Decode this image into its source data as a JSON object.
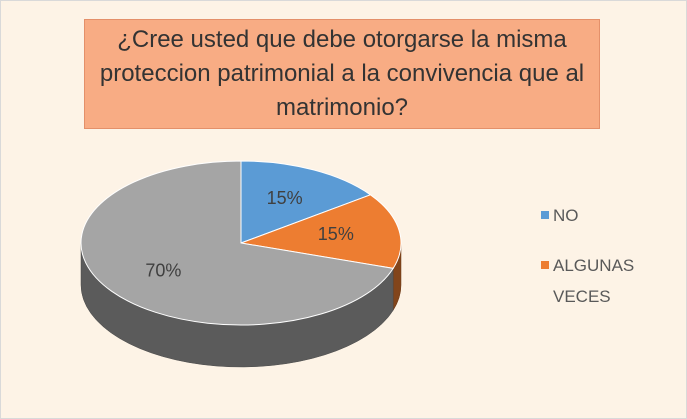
{
  "chart_data": {
    "type": "pie",
    "title": "¿Cree usted que debe otorgarse la misma proteccion patrimonial a la convivencia que al matrimonio?",
    "categories": [
      "NO",
      "ALGUNAS VECES",
      null
    ],
    "values": [
      15,
      15,
      70
    ],
    "value_labels": [
      "15%",
      "15%",
      "70%"
    ],
    "colors": [
      "#5b9bd5",
      "#ed7d31",
      "#a5a5a5"
    ],
    "legend": "right"
  }
}
